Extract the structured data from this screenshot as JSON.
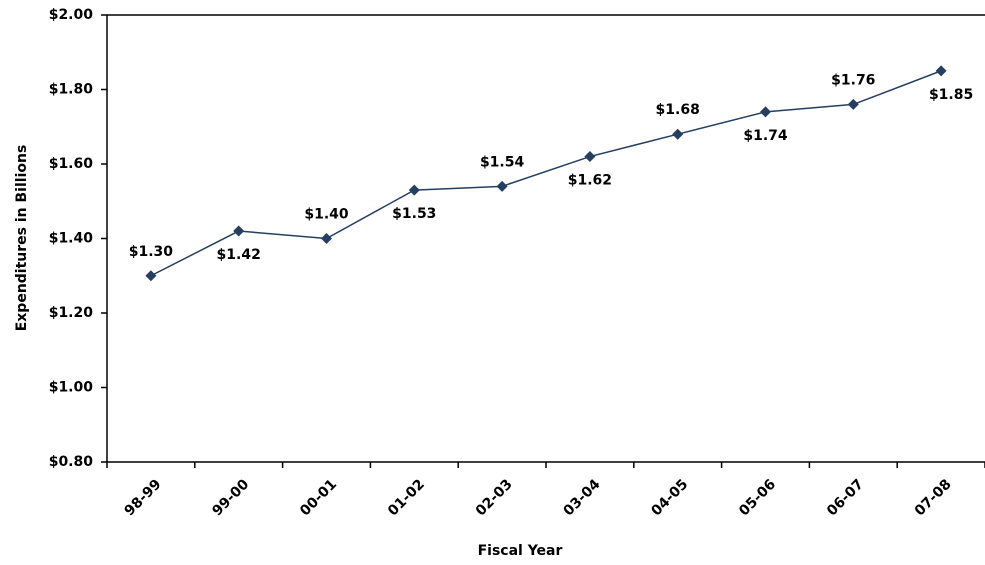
{
  "chart_data": {
    "type": "line",
    "x_label": "Fiscal Year",
    "y_label": "Expenditures in Billions",
    "categories": [
      "98-99",
      "99-00",
      "00-01",
      "01-02",
      "02-03",
      "03-04",
      "04-05",
      "05-06",
      "06-07",
      "07-08"
    ],
    "series": [
      {
        "name": "Expenditures",
        "color": "#243f60",
        "values": [
          1.3,
          1.42,
          1.4,
          1.53,
          1.54,
          1.62,
          1.68,
          1.74,
          1.76,
          1.85
        ],
        "value_labels": [
          "$1.30",
          "$1.42",
          "$1.40",
          "$1.53",
          "$1.54",
          "$1.62",
          "$1.68",
          "$1.74",
          "$1.76",
          "$1.85"
        ]
      }
    ],
    "ylim": [
      0.8,
      2.0
    ],
    "yticks": [
      {
        "value": 0.8,
        "label": "$0.80"
      },
      {
        "value": 1.0,
        "label": "$1.00"
      },
      {
        "value": 1.2,
        "label": "$1.20"
      },
      {
        "value": 1.4,
        "label": "$1.40"
      },
      {
        "value": 1.6,
        "label": "$1.60"
      },
      {
        "value": 1.8,
        "label": "$1.80"
      },
      {
        "value": 2.0,
        "label": "$2.00"
      }
    ],
    "grid": false
  }
}
